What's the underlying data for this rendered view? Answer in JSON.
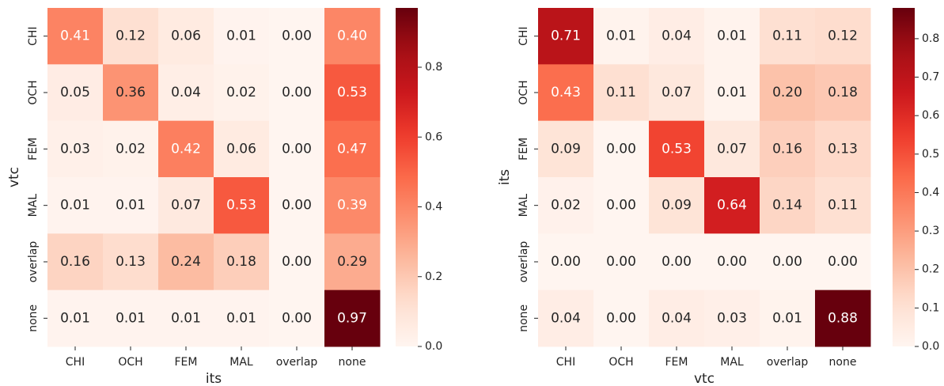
{
  "chart_data": [
    {
      "type": "heatmap",
      "xlabel": "its",
      "ylabel": "vtc",
      "x": [
        "CHI",
        "OCH",
        "FEM",
        "MAL",
        "overlap",
        "none"
      ],
      "y": [
        "CHI",
        "OCH",
        "FEM",
        "MAL",
        "overlap",
        "none"
      ],
      "values": [
        [
          0.41,
          0.12,
          0.06,
          0.01,
          0,
          0.4
        ],
        [
          0.05,
          0.36,
          0.04,
          0.02,
          0,
          0.53
        ],
        [
          0.03,
          0.02,
          0.42,
          0.06,
          0,
          0.47
        ],
        [
          0.01,
          0.01,
          0.07,
          0.53,
          0,
          0.39
        ],
        [
          0.16,
          0.13,
          0.24,
          0.18,
          0,
          0.29
        ],
        [
          0.01,
          0.01,
          0.01,
          0.01,
          0,
          0.97
        ]
      ],
      "value_labels": [
        [
          "0.41",
          "0.12",
          "0.06",
          "0.01",
          "0.00",
          "0.40"
        ],
        [
          "0.05",
          "0.36",
          "0.04",
          "0.02",
          "0.00",
          "0.53"
        ],
        [
          "0.03",
          "0.02",
          "0.42",
          "0.06",
          "0.00",
          "0.47"
        ],
        [
          "0.01",
          "0.01",
          "0.07",
          "0.53",
          "0.00",
          "0.39"
        ],
        [
          "0.16",
          "0.13",
          "0.24",
          "0.18",
          "0.00",
          "0.29"
        ],
        [
          "0.01",
          "0.01",
          "0.01",
          "0.01",
          "0.00",
          "0.97"
        ]
      ],
      "colormap": "Reds",
      "clim": [
        0,
        0.97
      ],
      "cticks": [
        {
          "value": 0,
          "label": "0.0"
        },
        0.2,
        0.4,
        0.6,
        0.8
      ]
    },
    {
      "type": "heatmap",
      "xlabel": "vtc",
      "ylabel": "its",
      "x": [
        "CHI",
        "OCH",
        "FEM",
        "MAL",
        "overlap",
        "none"
      ],
      "y": [
        "CHI",
        "OCH",
        "FEM",
        "MAL",
        "overlap",
        "none"
      ],
      "values": [
        [
          0.71,
          0.01,
          0.04,
          0.01,
          0.11,
          0.12
        ],
        [
          0.43,
          0.11,
          0.07,
          0.01,
          0.2,
          0.18
        ],
        [
          0.09,
          0,
          0.53,
          0.07,
          0.16,
          0.13
        ],
        [
          0.02,
          0,
          0.09,
          0.64,
          0.14,
          0.11
        ],
        [
          0,
          0,
          0,
          0,
          0,
          0
        ],
        [
          0.04,
          0,
          0.04,
          0.03,
          0.01,
          0.88
        ]
      ],
      "value_labels": [
        [
          "0.71",
          "0.01",
          "0.04",
          "0.01",
          "0.11",
          "0.12"
        ],
        [
          "0.43",
          "0.11",
          "0.07",
          "0.01",
          "0.20",
          "0.18"
        ],
        [
          "0.09",
          "0.00",
          "0.53",
          "0.07",
          "0.16",
          "0.13"
        ],
        [
          "0.02",
          "0.00",
          "0.09",
          "0.64",
          "0.14",
          "0.11"
        ],
        [
          "0.00",
          "0.00",
          "0.00",
          "0.00",
          "0.00",
          "0.00"
        ],
        [
          "0.04",
          "0.00",
          "0.04",
          "0.03",
          "0.01",
          "0.88"
        ]
      ],
      "colormap": "Reds",
      "clim": [
        0,
        0.88
      ],
      "cticks": [
        {
          "value": 0,
          "label": "0.0"
        },
        0.1,
        0.2,
        0.3,
        0.4,
        0.5,
        0.6,
        0.7,
        0.8
      ]
    }
  ]
}
